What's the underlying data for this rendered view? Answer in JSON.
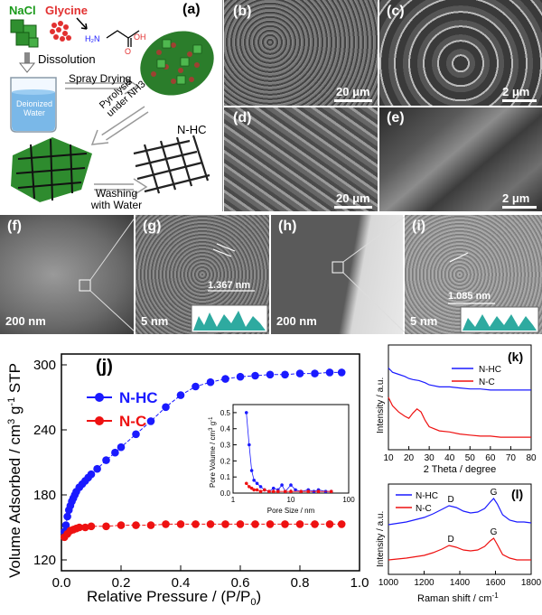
{
  "schematic": {
    "label": "(a)",
    "nacl": "NaCl",
    "glycine": "Glycine",
    "step_dissolution": "Dissolution",
    "water": "Deionized Water",
    "step_spray": "Spray Drying",
    "step_pyrolysis": "Pyrolysis under NH3",
    "product": "N-HC",
    "step_washing": "Washing with Water"
  },
  "sem": [
    {
      "label": "(b)",
      "scale": "20 μm"
    },
    {
      "label": "(c)",
      "scale": "2 μm"
    },
    {
      "label": "(d)",
      "scale": "20 μm"
    },
    {
      "label": "(e)",
      "scale": "2 μm"
    }
  ],
  "tem": [
    {
      "label": "(f)",
      "scale": "200 nm"
    },
    {
      "label": "(g)",
      "scale": "5 nm",
      "spacing": "1.367 nm"
    },
    {
      "label": "(h)",
      "scale": "200 nm"
    },
    {
      "label": "(i)",
      "scale": "5 nm",
      "spacing": "1.085 nm"
    }
  ],
  "chart_data": [
    {
      "panel": "(j)",
      "type": "scatter",
      "xlabel": "Relative Pressure / (P/P0)",
      "ylabel": "Volume Adsorbed / cm3 g-1 STP",
      "xlim": [
        0,
        1.0
      ],
      "ylim": [
        110,
        310
      ],
      "xticks": [
        "0.0",
        "0.2",
        "0.4",
        "0.6",
        "0.8",
        "1.0"
      ],
      "yticks": [
        "120",
        "180",
        "240",
        "300"
      ],
      "legend": "top-left",
      "series": [
        {
          "name": "N-HC",
          "color": "#1a1aff",
          "x": [
            0.01,
            0.015,
            0.02,
            0.025,
            0.03,
            0.035,
            0.04,
            0.045,
            0.05,
            0.06,
            0.07,
            0.08,
            0.09,
            0.1,
            0.12,
            0.15,
            0.18,
            0.2,
            0.25,
            0.3,
            0.35,
            0.4,
            0.45,
            0.5,
            0.55,
            0.6,
            0.65,
            0.7,
            0.75,
            0.8,
            0.85,
            0.9,
            0.94
          ],
          "y": [
            146,
            152,
            160,
            166,
            170,
            174,
            177,
            180,
            183,
            187,
            190,
            193,
            196,
            199,
            204,
            212,
            219,
            224,
            236,
            248,
            261,
            272,
            280,
            284,
            287,
            289,
            290,
            291,
            291,
            292,
            292,
            293,
            293
          ]
        },
        {
          "name": "N-C",
          "color": "#ee1111",
          "x": [
            0.01,
            0.02,
            0.03,
            0.04,
            0.05,
            0.06,
            0.08,
            0.1,
            0.15,
            0.2,
            0.25,
            0.3,
            0.35,
            0.4,
            0.45,
            0.5,
            0.55,
            0.6,
            0.65,
            0.7,
            0.75,
            0.8,
            0.85,
            0.9,
            0.94
          ],
          "y": [
            141,
            144,
            147,
            148,
            149,
            150,
            150,
            151,
            151,
            152,
            152,
            152,
            153,
            153,
            153,
            153,
            153,
            153,
            153,
            153,
            153,
            153,
            153,
            153,
            153
          ]
        }
      ]
    },
    {
      "panel": "inset",
      "type": "line",
      "xlabel": "Pore Size / nm",
      "ylabel": "Pore Volume / cm3 g-1",
      "xscale": "log",
      "xlim": [
        1,
        100
      ],
      "ylim": [
        0,
        0.55
      ],
      "xticks": [
        "1",
        "10",
        "100"
      ],
      "yticks": [
        "0.0",
        "0.1",
        "0.2",
        "0.3",
        "0.4",
        "0.5"
      ],
      "series": [
        {
          "name": "N-HC",
          "color": "#1a1aff",
          "x": [
            1.7,
            1.9,
            2.1,
            2.3,
            2.6,
            3.0,
            3.5,
            4.2,
            5,
            6,
            7,
            8,
            10,
            12,
            15,
            20,
            25,
            30,
            40,
            50
          ],
          "y": [
            0.5,
            0.3,
            0.14,
            0.08,
            0.06,
            0.04,
            0.02,
            0.01,
            0.03,
            0.02,
            0.05,
            0.01,
            0.05,
            0.02,
            0.01,
            0.02,
            0.01,
            0.02,
            0.01,
            0.01
          ]
        },
        {
          "name": "N-C",
          "color": "#ee1111",
          "x": [
            1.7,
            1.9,
            2.1,
            2.3,
            2.6,
            3.0,
            3.5,
            4.2,
            5,
            6,
            8,
            10,
            15,
            20,
            30,
            50
          ],
          "y": [
            0.06,
            0.04,
            0.03,
            0.02,
            0.02,
            0.01,
            0.02,
            0.01,
            0.01,
            0.01,
            0.01,
            0.01,
            0.01,
            0.01,
            0.01,
            0.01
          ]
        }
      ]
    },
    {
      "panel": "(k)",
      "type": "line",
      "xlabel": "2 Theta / degree",
      "ylabel": "Intensity / a.u.",
      "xlim": [
        10,
        80
      ],
      "xticks": [
        "10",
        "20",
        "30",
        "40",
        "50",
        "60",
        "70",
        "80"
      ],
      "legend": "top-right",
      "series": [
        {
          "name": "N-HC",
          "color": "#1a1aff",
          "x": [
            10,
            12,
            15,
            18,
            20,
            22,
            25,
            28,
            30,
            35,
            40,
            45,
            50,
            55,
            60,
            65,
            70,
            75,
            80
          ],
          "y": [
            0.78,
            0.74,
            0.72,
            0.7,
            0.68,
            0.67,
            0.66,
            0.64,
            0.62,
            0.6,
            0.6,
            0.59,
            0.58,
            0.58,
            0.57,
            0.57,
            0.57,
            0.57,
            0.57
          ]
        },
        {
          "name": "N-C",
          "color": "#ee1111",
          "x": [
            10,
            12,
            15,
            18,
            20,
            22,
            24,
            26,
            28,
            30,
            35,
            40,
            45,
            50,
            55,
            60,
            65,
            70,
            75,
            80
          ],
          "y": [
            0.5,
            0.42,
            0.36,
            0.32,
            0.3,
            0.35,
            0.39,
            0.36,
            0.28,
            0.22,
            0.18,
            0.17,
            0.15,
            0.14,
            0.13,
            0.13,
            0.12,
            0.12,
            0.12,
            0.12
          ]
        }
      ]
    },
    {
      "panel": "(l)",
      "type": "line",
      "xlabel": "Raman shift / cm-1",
      "ylabel": "Intensity / a.u.",
      "xlim": [
        1000,
        1800
      ],
      "xticks": [
        "1000",
        "1200",
        "1400",
        "1600",
        "1800"
      ],
      "legend": "top-left",
      "peak_labels": [
        "D",
        "G",
        "D",
        "G"
      ],
      "series": [
        {
          "name": "N-HC",
          "color": "#1a1aff",
          "x": [
            1000,
            1100,
            1200,
            1250,
            1300,
            1340,
            1380,
            1420,
            1460,
            1500,
            1540,
            1570,
            1590,
            1610,
            1640,
            1680,
            1720,
            1760,
            1800
          ],
          "y": [
            0.55,
            0.58,
            0.63,
            0.67,
            0.72,
            0.76,
            0.74,
            0.7,
            0.68,
            0.69,
            0.73,
            0.8,
            0.84,
            0.78,
            0.66,
            0.6,
            0.58,
            0.58,
            0.57
          ]
        },
        {
          "name": "N-C",
          "color": "#ee1111",
          "x": [
            1000,
            1100,
            1200,
            1250,
            1300,
            1340,
            1380,
            1420,
            1460,
            1500,
            1540,
            1570,
            1590,
            1610,
            1640,
            1680,
            1720,
            1760,
            1800
          ],
          "y": [
            0.16,
            0.18,
            0.21,
            0.24,
            0.28,
            0.32,
            0.3,
            0.27,
            0.26,
            0.27,
            0.31,
            0.37,
            0.4,
            0.33,
            0.22,
            0.18,
            0.16,
            0.16,
            0.16
          ]
        }
      ]
    }
  ]
}
